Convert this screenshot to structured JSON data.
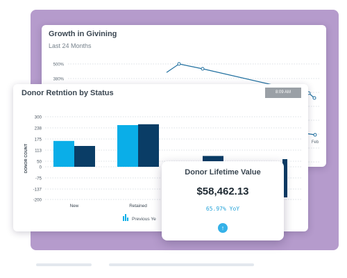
{
  "growth_card": {
    "title": "Growth in Givining",
    "subtitle": "Last 24 Months",
    "chart_data": {
      "type": "line",
      "y_tick_labels": [
        "500%",
        "380%"
      ],
      "x_tick_labels": [
        "Feb"
      ],
      "series": [
        {
          "values": [
            430,
            500,
            460,
            260,
            220
          ]
        },
        {
          "values": [
            180,
            175
          ]
        }
      ]
    }
  },
  "retention_card": {
    "title": "Donor Retntion by Status",
    "time_badge": "8:09 AM",
    "legend_partial": "Previous Ye",
    "chart_data": {
      "type": "bar",
      "ylabel": "DONOR COUNT",
      "ylim": [
        -200,
        300
      ],
      "y_ticks": [
        300,
        238,
        175,
        113,
        50,
        0,
        -75,
        -137,
        -200
      ],
      "categories": [
        "New",
        "Retained",
        ""
      ],
      "series": [
        {
          "values": [
            155,
            250,
            25
          ],
          "color": "#0aaee8"
        },
        {
          "values": [
            125,
            255,
            65
          ],
          "color": "#0a3d66"
        }
      ]
    }
  },
  "lifetime_card": {
    "title": "Donor Lifetime Value",
    "value": "$58,462.13",
    "yoy": "65.97% YoY",
    "arrow_icon": "arrow-up-icon"
  },
  "colors": {
    "background": "#b59bcc",
    "bar_light": "#0aaee8",
    "bar_dark": "#0a3d66",
    "line": "#1f6f9f",
    "accent": "#35b1e8"
  }
}
